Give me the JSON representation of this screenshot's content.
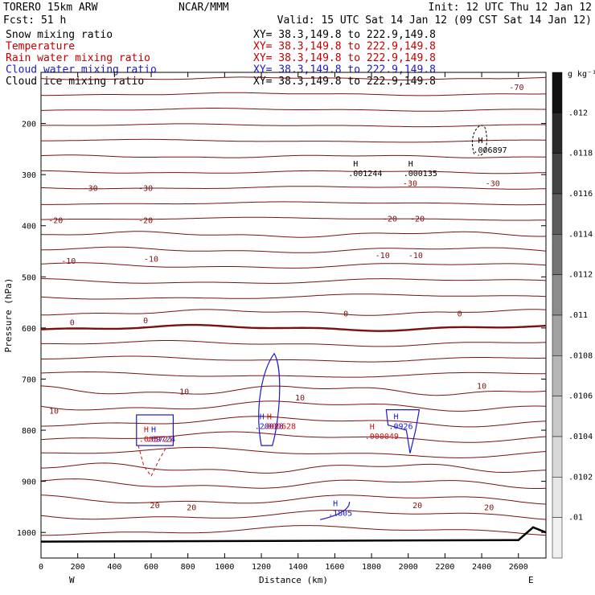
{
  "header": {
    "model": "TORERO   15km ARW",
    "center": "NCAR/MMM",
    "init": "Init: 12 UTC Thu 12 Jan 12",
    "fcst": "Fcst:   51 h",
    "valid": "Valid: 15 UTC Sat 14 Jan 12 (09 CST Sat 14 Jan 12)"
  },
  "fields": [
    {
      "name": "Snow mixing ratio",
      "xy": "XY=  38.3,149.8 to 222.9,149.8",
      "color": "#000000"
    },
    {
      "name": "Temperature",
      "xy": "XY=  38.3,149.8 to 222.9,149.8",
      "color": "#c00000"
    },
    {
      "name": "Rain water mixing ratio",
      "xy": "XY=  38.3,149.8 to 222.9,149.8",
      "color": "#c00000"
    },
    {
      "name": "Cloud water mixing ratio",
      "xy": "XY=  38.3,149.8 to 222.9,149.8",
      "color": "#1a1acc"
    },
    {
      "name": "Cloud ice mixing ratio",
      "xy": "XY=  38.3,149.8 to 222.9,149.8",
      "color": "#000000"
    }
  ],
  "chart_data": {
    "type": "cross-section",
    "xlabel": "Distance (km)",
    "ylabel": "Pressure (hPa)",
    "xlim": [
      0,
      2750
    ],
    "ylim": [
      1050,
      100
    ],
    "x_ticks": [
      0,
      200,
      400,
      600,
      800,
      1000,
      1200,
      1400,
      1600,
      1800,
      2000,
      2200,
      2400,
      2600
    ],
    "y_ticks": [
      200,
      300,
      400,
      500,
      600,
      700,
      800,
      900,
      1000
    ],
    "x_end_labels": {
      "left": "W",
      "right": "E"
    },
    "colorbar": {
      "unit": "g kg⁻¹",
      "labels": [
        ".012",
        ".0118",
        ".0116",
        ".0114",
        ".0112",
        ".011",
        ".0108",
        ".0106",
        ".0104",
        ".0102",
        ".01"
      ],
      "colors": [
        "#111111",
        "#2a2a2a",
        "#444444",
        "#5c5c5c",
        "#747474",
        "#8c8c8c",
        "#a2a2a2",
        "#b6b6b6",
        "#c8c8c8",
        "#d8d8d8",
        "#e6e6e6",
        "#f0f0f0"
      ]
    },
    "temperature_isotherms": [
      {
        "label": "-70",
        "label_positions": [
          [
            2590,
            130
          ]
        ]
      },
      {
        "label": "-30",
        "label_positions": [
          [
            270,
            327
          ],
          [
            570,
            327
          ],
          [
            2010,
            318
          ],
          [
            2460,
            318
          ]
        ]
      },
      {
        "label": "-20",
        "label_positions": [
          [
            80,
            390
          ],
          [
            570,
            390
          ],
          [
            1900,
            387
          ],
          [
            2050,
            387
          ]
        ]
      },
      {
        "label": "-10",
        "label_positions": [
          [
            150,
            470
          ],
          [
            600,
            466
          ],
          [
            1860,
            459
          ],
          [
            2040,
            459
          ]
        ]
      },
      {
        "label": "0",
        "label_positions": [
          [
            170,
            590
          ],
          [
            570,
            586
          ],
          [
            1660,
            573
          ],
          [
            2280,
            573
          ]
        ]
      },
      {
        "label": "10",
        "label_positions": [
          [
            70,
            763
          ],
          [
            780,
            725
          ],
          [
            1410,
            737
          ],
          [
            2400,
            714
          ]
        ]
      },
      {
        "label": "20",
        "label_positions": [
          [
            620,
            948
          ],
          [
            820,
            952
          ],
          [
            2050,
            948
          ],
          [
            2440,
            952
          ]
        ]
      }
    ],
    "extrema": [
      {
        "label": "H",
        "value": ".001244",
        "x": 1700,
        "p": 290,
        "field": "snow"
      },
      {
        "label": "H",
        "value": ".000135",
        "x": 2000,
        "p": 290,
        "field": "snow"
      },
      {
        "label": "H",
        "value": ".006897",
        "x": 2380,
        "p": 245,
        "field": "cloud ice"
      },
      {
        "label": "H",
        "value": ".09724",
        "x": 600,
        "p": 810,
        "field": "cloud water"
      },
      {
        "label": "H",
        "value": ".005721",
        "x": 560,
        "p": 810,
        "field": "rain water"
      },
      {
        "label": "H",
        "value": ".20028",
        "x": 1190,
        "p": 785,
        "field": "cloud water"
      },
      {
        "label": "H",
        "value": ".000628",
        "x": 1230,
        "p": 785,
        "field": "rain water"
      },
      {
        "label": "H",
        "value": ".0926",
        "x": 1920,
        "p": 785,
        "field": "cloud water"
      },
      {
        "label": "H",
        "value": ".000049",
        "x": 1790,
        "p": 805,
        "field": "rain water"
      },
      {
        "label": "H",
        "value": ".1805",
        "x": 1590,
        "p": 955,
        "field": "cloud water"
      }
    ]
  }
}
